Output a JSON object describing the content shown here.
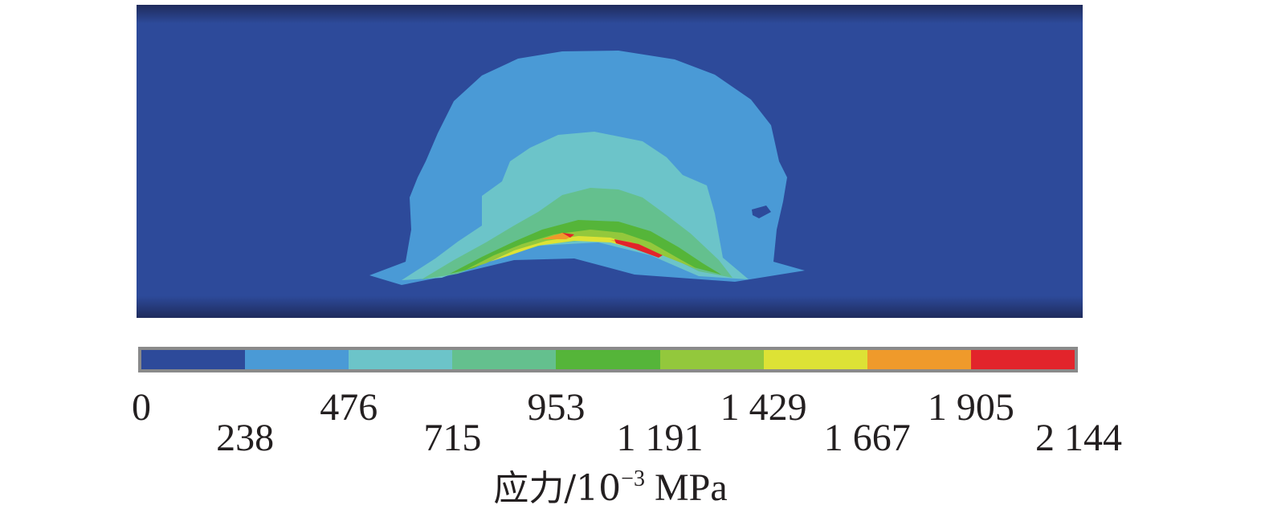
{
  "chart_data": {
    "type": "heatmap",
    "colorbar": {
      "ticks": [
        "0",
        "238",
        "476",
        "715",
        "953",
        "1 191",
        "1 429",
        "1 667",
        "1 905",
        "2 144"
      ],
      "values": [
        0,
        238,
        476,
        715,
        953,
        1191,
        1429,
        1667,
        1905,
        2144
      ],
      "colors": [
        "#2d4a9a",
        "#4a9ad6",
        "#6cc4c9",
        "#64c08e",
        "#55b539",
        "#93c83c",
        "#dde235",
        "#ef9a2b",
        "#e2242b"
      ],
      "label_prefix": "应力/10",
      "label_exponent": "−3",
      "label_unit": " MPa"
    },
    "contour_levels": [
      238,
      476,
      715,
      953,
      1191,
      1429,
      1667,
      1905
    ],
    "background_color": "#2d4a9a"
  }
}
